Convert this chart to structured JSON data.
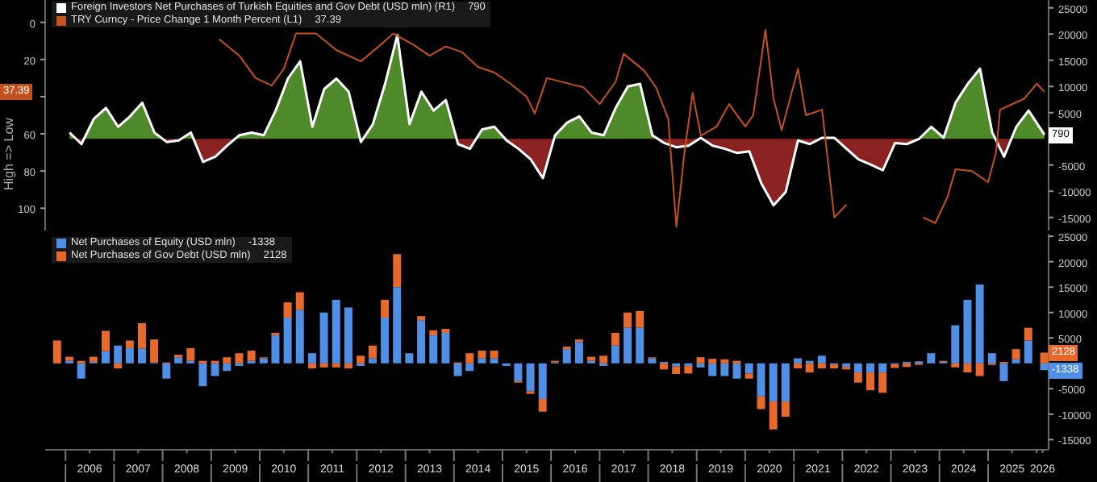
{
  "chart_data": [
    {
      "type": "area",
      "ylabel": "High => Low",
      "annotations": [
        "790",
        "37.39"
      ],
      "xlim": [
        "2005-08",
        "2026-04"
      ],
      "ylim": [
        112,
        -12
      ],
      "yticks": [
        0,
        20,
        {
          "value": 40,
          "label": null
        },
        60,
        80,
        100
      ],
      "y2lim": [
        -17500,
        26500
      ],
      "y2ticks": [
        25000,
        20000,
        15000,
        10000,
        5000,
        -5000,
        -10000,
        -15000
      ],
      "tick_labels": "y",
      "legend": "top left",
      "series": [
        {
          "name": "Foreign Investors Net Purchases of Turkish Equities and Gov Debt (USD mln) (R1)",
          "color": "#ffffff",
          "axis": "y2",
          "x": [
            "2006-02",
            "2006-05",
            "2006-08",
            "2006-11",
            "2007-02",
            "2007-05",
            "2007-08",
            "2007-11",
            "2008-02",
            "2008-05",
            "2008-08",
            "2008-11",
            "2009-02",
            "2009-05",
            "2009-08",
            "2009-11",
            "2010-02",
            "2010-05",
            "2010-08",
            "2010-11",
            "2011-02",
            "2011-05",
            "2011-08",
            "2011-11",
            "2012-02",
            "2012-05",
            "2012-08",
            "2012-11",
            "2013-02",
            "2013-05",
            "2013-08",
            "2013-11",
            "2014-02",
            "2014-05",
            "2014-08",
            "2014-11",
            "2015-02",
            "2015-05",
            "2015-08",
            "2015-11",
            "2016-02",
            "2016-05",
            "2016-08",
            "2016-11",
            "2017-02",
            "2017-05",
            "2017-08",
            "2017-11",
            "2018-02",
            "2018-05",
            "2018-08",
            "2018-11",
            "2019-02",
            "2019-05",
            "2019-08",
            "2019-11",
            "2020-02",
            "2020-05",
            "2020-08",
            "2020-11",
            "2021-02",
            "2021-05",
            "2021-08",
            "2021-11",
            "2022-02",
            "2022-05",
            "2022-08",
            "2022-11",
            "2023-02",
            "2023-05",
            "2023-08",
            "2023-11",
            "2024-02",
            "2024-05",
            "2024-08",
            "2024-11",
            "2025-02",
            "2025-05",
            "2025-08",
            "2025-11",
            "2026-03"
          ],
          "values": [
            1200,
            -1000,
            3800,
            5900,
            2300,
            4300,
            6900,
            1200,
            -600,
            -300,
            1200,
            -4400,
            -3400,
            -1300,
            700,
            1200,
            700,
            5400,
            11500,
            14800,
            2300,
            9500,
            11500,
            9000,
            -600,
            2800,
            10500,
            19800,
            2800,
            9000,
            5400,
            7400,
            -1000,
            -1900,
            1800,
            2300,
            -300,
            -1900,
            -3900,
            -7500,
            700,
            3100,
            4300,
            1200,
            700,
            5900,
            10000,
            10500,
            700,
            -800,
            -1600,
            -1300,
            200,
            -1300,
            -1900,
            -2700,
            -2400,
            -8500,
            -12700,
            -10100,
            -300,
            -1000,
            200,
            200,
            -1900,
            -3900,
            -4900,
            -6000,
            -800,
            -1000,
            0,
            2300,
            200,
            6900,
            10500,
            13400,
            1200,
            -3400,
            2300,
            5400,
            790
          ]
        },
        {
          "name": "TRY Curncy - Price Change 1 Month Percent (L1)",
          "type": "line",
          "color": "#c4521e",
          "axis": "y",
          "x": [
            "2009-03",
            "2009-08",
            "2009-12",
            "2010-04",
            "2010-07",
            "2010-10",
            "2011-03",
            "2011-08",
            "2012-02",
            "2012-07",
            "2012-10",
            "2013-03",
            "2013-07",
            "2013-11",
            "2014-03",
            "2014-07",
            "2014-11",
            "2015-03",
            "2015-07",
            "2015-09",
            "2015-12",
            "2016-09",
            "2017-01",
            "2017-05",
            "2017-07",
            "2017-12",
            "2018-03",
            "2018-06",
            "2018-08",
            "2018-10",
            "2018-12",
            "2019-02",
            "2019-06",
            "2019-09",
            "2020-01",
            "2020-03",
            "2020-06",
            "2020-08",
            "2020-10",
            "2021-02",
            "2021-04",
            "2021-08",
            "2021-11",
            "2022-02",
            "2022-05",
            "2023-09",
            "2023-12",
            "2024-03",
            "2024-05",
            "2024-09",
            "2025-01",
            "2025-03",
            "2025-04",
            "2025-06",
            "2025-10",
            "2026-01",
            "2026-03"
          ],
          "values": [
            9,
            18,
            30,
            34,
            25,
            6,
            6,
            15,
            21,
            12,
            6,
            12,
            18,
            13,
            16,
            24,
            27,
            33,
            40,
            49,
            30,
            35,
            44,
            32,
            17,
            26,
            35,
            52,
            110,
            70,
            38,
            61,
            56,
            44,
            56,
            50,
            4,
            41,
            58,
            25,
            50,
            47,
            105,
            98,
            null,
            105,
            108,
            94,
            79,
            80,
            86,
            70,
            47,
            45,
            41,
            33,
            37.39
          ]
        }
      ]
    },
    {
      "type": "bar",
      "stacked": true,
      "legend": "top left",
      "annotations": [
        "-1338",
        "2128"
      ],
      "xlim": [
        "2005-08",
        "2026-04"
      ],
      "ylim": [
        -17000,
        25500
      ],
      "yticks": [
        25000,
        20000,
        15000,
        10000,
        5000,
        -5000,
        -10000,
        -15000
      ],
      "xticks": [
        {
          "value": "2006",
          "label": null
        },
        {
          "value": "2006-07",
          "label": "2006"
        },
        {
          "value": "2007",
          "label": null
        },
        {
          "value": "2007-07",
          "label": "2007"
        },
        {
          "value": "2008",
          "label": null
        },
        {
          "value": "2008-07",
          "label": "2008"
        },
        {
          "value": "2009",
          "label": null
        },
        {
          "value": "2009-07",
          "label": "2009"
        },
        {
          "value": "2010",
          "label": null
        },
        {
          "value": "2010-07",
          "label": "2010"
        },
        {
          "value": "2011",
          "label": null
        },
        {
          "value": "2011-07",
          "label": "2011"
        },
        {
          "value": "2012",
          "label": null
        },
        {
          "value": "2012-07",
          "label": "2012"
        },
        {
          "value": "2013",
          "label": null
        },
        {
          "value": "2013-07",
          "label": "2013"
        },
        {
          "value": "2014",
          "label": null
        },
        {
          "value": "2014-07",
          "label": "2014"
        },
        {
          "value": "2015",
          "label": null
        },
        {
          "value": "2015-07",
          "label": "2015"
        },
        {
          "value": "2016",
          "label": null
        },
        {
          "value": "2016-07",
          "label": "2016"
        },
        {
          "value": "2017",
          "label": null
        },
        {
          "value": "2017-07",
          "label": "2017"
        },
        {
          "value": "2018",
          "label": null
        },
        {
          "value": "2018-07",
          "label": "2018"
        },
        {
          "value": "2019",
          "label": null
        },
        {
          "value": "2019-07",
          "label": "2019"
        },
        {
          "value": "2020",
          "label": null
        },
        {
          "value": "2020-07",
          "label": "2020"
        },
        {
          "value": "2021",
          "label": null
        },
        {
          "value": "2021-07",
          "label": "2021"
        },
        {
          "value": "2022",
          "label": null
        },
        {
          "value": "2022-07",
          "label": "2022"
        },
        {
          "value": "2023",
          "label": null
        },
        {
          "value": "2023-07",
          "label": "2023"
        },
        {
          "value": "2024",
          "label": null
        },
        {
          "value": "2024-07",
          "label": "2024"
        },
        {
          "value": "2025",
          "label": null
        },
        {
          "value": "2025-07",
          "label": "2025"
        },
        {
          "value": "2026",
          "label": null
        },
        {
          "value": "2026-02-15",
          "label": "2026"
        }
      ],
      "x": [
        "2005-11",
        "2006-02",
        "2006-05",
        "2006-08",
        "2006-11",
        "2007-02",
        "2007-05",
        "2007-08",
        "2007-11",
        "2008-02",
        "2008-05",
        "2008-08",
        "2008-11",
        "2009-02",
        "2009-05",
        "2009-08",
        "2009-11",
        "2010-02",
        "2010-05",
        "2010-08",
        "2010-11",
        "2011-02",
        "2011-05",
        "2011-08",
        "2011-11",
        "2012-02",
        "2012-05",
        "2012-08",
        "2012-11",
        "2013-02",
        "2013-05",
        "2013-08",
        "2013-11",
        "2014-02",
        "2014-05",
        "2014-08",
        "2014-11",
        "2015-02",
        "2015-05",
        "2015-08",
        "2015-11",
        "2016-02",
        "2016-05",
        "2016-08",
        "2016-11",
        "2017-02",
        "2017-05",
        "2017-08",
        "2017-11",
        "2018-02",
        "2018-05",
        "2018-08",
        "2018-11",
        "2019-02",
        "2019-05",
        "2019-08",
        "2019-11",
        "2020-02",
        "2020-05",
        "2020-08",
        "2020-11",
        "2021-02",
        "2021-05",
        "2021-08",
        "2021-11",
        "2022-02",
        "2022-05",
        "2022-08",
        "2022-11",
        "2023-02",
        "2023-05",
        "2023-08",
        "2023-11",
        "2024-02",
        "2024-05",
        "2024-08",
        "2024-11",
        "2025-02",
        "2025-05",
        "2025-08",
        "2025-11",
        "2026-03"
      ],
      "series": [
        {
          "name": "Net Purchases of Equity (USD mln)",
          "color": "#4f8fe6",
          "values": [
            0,
            500,
            -3000,
            300,
            2400,
            3500,
            3000,
            2900,
            200,
            -3000,
            1200,
            500,
            -4500,
            -2500,
            -1500,
            -500,
            500,
            1000,
            5500,
            9000,
            10500,
            2000,
            10000,
            12500,
            11000,
            -500,
            1000,
            9000,
            15000,
            2000,
            8500,
            5500,
            6000,
            -2500,
            -1500,
            1000,
            1000,
            -500,
            -3500,
            -5500,
            -7000,
            200,
            2800,
            4200,
            500,
            -500,
            3500,
            7000,
            7000,
            1000,
            300,
            -600,
            -500,
            -800,
            -2500,
            -2500,
            -3000,
            -2000,
            -6500,
            -7500,
            -7500,
            1000,
            500,
            1500,
            -200,
            -700,
            -1800,
            -1800,
            -1800,
            -200,
            300,
            400,
            2000,
            300,
            7500,
            12500,
            15500,
            2000,
            -3500,
            800,
            4500,
            -1338
          ]
        },
        {
          "name": "Net Purchases of Gov Debt (USD mln)",
          "color": "#e8692c",
          "values": [
            4500,
            800,
            500,
            1000,
            4000,
            -1000,
            1500,
            5000,
            4500,
            200,
            500,
            2500,
            500,
            500,
            1200,
            2000,
            2000,
            200,
            500,
            3000,
            3500,
            -1000,
            -800,
            -800,
            -1000,
            1500,
            2500,
            3500,
            6500,
            0,
            800,
            1000,
            800,
            200,
            2000,
            1500,
            1500,
            0,
            -300,
            -500,
            -2500,
            300,
            500,
            500,
            800,
            1500,
            2500,
            3000,
            3300,
            200,
            -1200,
            -1500,
            -1500,
            1200,
            900,
            800,
            500,
            -1000,
            -2500,
            -5500,
            -3000,
            -1000,
            -1800,
            -1000,
            -800,
            -500,
            -2000,
            -3500,
            -4000,
            -700,
            -700,
            -300,
            0,
            200,
            -800,
            -1800,
            -2500,
            -300,
            300,
            2000,
            2500,
            2128
          ]
        }
      ]
    }
  ]
}
